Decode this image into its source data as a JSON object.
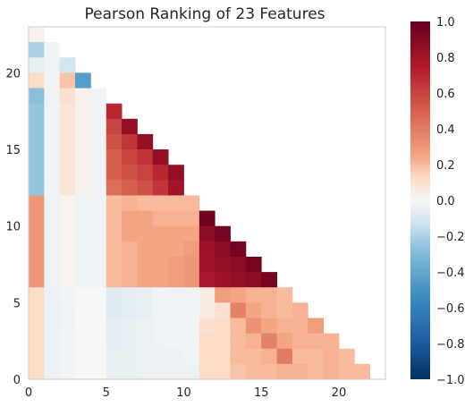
{
  "chart_data": {
    "type": "heatmap",
    "title": "Pearson Ranking of 23 Features",
    "xlabel": "",
    "ylabel": "",
    "xlim": [
      0,
      23
    ],
    "ylim": [
      0,
      23
    ],
    "x_ticks": [
      0,
      5,
      10,
      15,
      20
    ],
    "y_ticks": [
      0,
      5,
      10,
      15,
      20
    ],
    "colorbar": {
      "range": [
        -1.0,
        1.0
      ],
      "ticks": [
        1.0,
        0.8,
        0.6,
        0.4,
        0.2,
        0.0,
        -0.2,
        -0.4,
        -0.6,
        -0.8,
        -1.0
      ],
      "tick_labels": [
        "1.0",
        "0.8",
        "0.6",
        "0.4",
        "0.2",
        "0.0",
        "−0.2",
        "−0.4",
        "−0.6",
        "−0.8",
        "−1.0"
      ],
      "colormap": "RdBu_r"
    },
    "grid": false,
    "note_on_matrix": "rows listed top (y=22) to bottom (y=0); index = x column; null = not drawn",
    "matrix": [
      [
        0.03,
        null,
        null,
        null,
        null,
        null,
        null,
        null,
        null,
        null,
        null,
        null,
        null,
        null,
        null,
        null,
        null,
        null,
        null,
        null,
        null,
        null,
        null
      ],
      [
        -0.2,
        -0.02,
        null,
        null,
        null,
        null,
        null,
        null,
        null,
        null,
        null,
        null,
        null,
        null,
        null,
        null,
        null,
        null,
        null,
        null,
        null,
        null,
        null
      ],
      [
        -0.05,
        -0.03,
        -0.12,
        null,
        null,
        null,
        null,
        null,
        null,
        null,
        null,
        null,
        null,
        null,
        null,
        null,
        null,
        null,
        null,
        null,
        null,
        null,
        null
      ],
      [
        0.12,
        -0.02,
        0.18,
        -0.45,
        null,
        null,
        null,
        null,
        null,
        null,
        null,
        null,
        null,
        null,
        null,
        null,
        null,
        null,
        null,
        null,
        null,
        null,
        null
      ],
      [
        -0.28,
        -0.02,
        0.1,
        0.03,
        -0.02,
        null,
        null,
        null,
        null,
        null,
        null,
        null,
        null,
        null,
        null,
        null,
        null,
        null,
        null,
        null,
        null,
        null,
        null
      ],
      [
        -0.25,
        -0.02,
        0.08,
        0.03,
        -0.02,
        0.7,
        null,
        null,
        null,
        null,
        null,
        null,
        null,
        null,
        null,
        null,
        null,
        null,
        null,
        null,
        null,
        null,
        null
      ],
      [
        -0.25,
        -0.02,
        0.08,
        0.03,
        -0.02,
        0.6,
        0.85,
        null,
        null,
        null,
        null,
        null,
        null,
        null,
        null,
        null,
        null,
        null,
        null,
        null,
        null,
        null,
        null
      ],
      [
        -0.25,
        -0.02,
        0.08,
        0.03,
        -0.02,
        0.55,
        0.65,
        0.85,
        null,
        null,
        null,
        null,
        null,
        null,
        null,
        null,
        null,
        null,
        null,
        null,
        null,
        null,
        null
      ],
      [
        -0.25,
        -0.02,
        0.08,
        0.03,
        -0.02,
        0.5,
        0.6,
        0.65,
        0.85,
        null,
        null,
        null,
        null,
        null,
        null,
        null,
        null,
        null,
        null,
        null,
        null,
        null,
        null
      ],
      [
        -0.25,
        -0.02,
        0.08,
        0.03,
        -0.02,
        0.5,
        0.55,
        0.6,
        0.7,
        0.85,
        null,
        null,
        null,
        null,
        null,
        null,
        null,
        null,
        null,
        null,
        null,
        null,
        null
      ],
      [
        -0.25,
        -0.02,
        0.08,
        0.03,
        -0.02,
        0.45,
        0.5,
        0.55,
        0.65,
        0.8,
        null,
        null,
        null,
        null,
        null,
        null,
        null,
        null,
        null,
        null,
        null,
        null,
        null
      ],
      [
        0.3,
        -0.03,
        0.02,
        -0.03,
        -0.02,
        0.2,
        0.22,
        0.2,
        0.2,
        0.2,
        0.2,
        null,
        null,
        null,
        null,
        null,
        null,
        null,
        null,
        null,
        null,
        null,
        null
      ],
      [
        0.3,
        -0.03,
        0.02,
        -0.03,
        -0.02,
        0.2,
        0.25,
        0.25,
        0.22,
        0.22,
        0.22,
        0.97,
        null,
        null,
        null,
        null,
        null,
        null,
        null,
        null,
        null,
        null,
        null
      ],
      [
        0.3,
        -0.03,
        0.02,
        -0.03,
        -0.02,
        0.2,
        0.25,
        0.25,
        0.25,
        0.25,
        0.25,
        0.88,
        0.95,
        null,
        null,
        null,
        null,
        null,
        null,
        null,
        null,
        null,
        null
      ],
      [
        0.3,
        -0.03,
        0.02,
        -0.03,
        -0.02,
        0.2,
        0.22,
        0.25,
        0.25,
        0.25,
        0.28,
        0.82,
        0.88,
        0.95,
        null,
        null,
        null,
        null,
        null,
        null,
        null,
        null,
        null
      ],
      [
        0.3,
        -0.03,
        0.02,
        -0.03,
        -0.02,
        0.2,
        0.22,
        0.25,
        0.25,
        0.28,
        0.3,
        0.8,
        0.85,
        0.88,
        0.95,
        null,
        null,
        null,
        null,
        null,
        null,
        null,
        null
      ],
      [
        0.3,
        -0.03,
        0.02,
        -0.03,
        -0.02,
        0.2,
        0.22,
        0.25,
        0.25,
        0.28,
        0.3,
        0.78,
        0.82,
        0.85,
        0.88,
        0.95,
        null,
        null,
        null,
        null,
        null,
        null,
        null
      ],
      [
        0.12,
        -0.04,
        -0.02,
        0.0,
        0.0,
        -0.08,
        -0.06,
        -0.05,
        -0.02,
        -0.02,
        -0.02,
        0.05,
        0.28,
        0.25,
        0.22,
        0.22,
        0.2,
        null,
        null,
        null,
        null,
        null,
        null
      ],
      [
        0.12,
        -0.04,
        -0.03,
        0.0,
        0.0,
        -0.08,
        -0.06,
        -0.05,
        -0.03,
        -0.02,
        -0.02,
        0.05,
        0.1,
        0.38,
        0.25,
        0.22,
        0.2,
        0.22,
        null,
        null,
        null,
        null,
        null
      ],
      [
        0.12,
        -0.04,
        -0.03,
        0.0,
        0.0,
        -0.06,
        -0.05,
        -0.04,
        -0.03,
        -0.02,
        -0.02,
        0.1,
        0.12,
        0.2,
        0.32,
        0.25,
        0.22,
        0.22,
        0.28,
        null,
        null,
        null,
        null
      ],
      [
        0.12,
        -0.04,
        -0.02,
        0.0,
        0.0,
        -0.06,
        -0.05,
        -0.04,
        -0.03,
        -0.02,
        -0.02,
        0.12,
        0.12,
        0.2,
        0.22,
        0.38,
        0.25,
        0.22,
        0.22,
        0.22,
        null,
        null,
        null
      ],
      [
        0.12,
        -0.04,
        -0.02,
        0.0,
        0.0,
        -0.05,
        -0.05,
        -0.04,
        -0.04,
        -0.04,
        -0.03,
        0.12,
        0.12,
        0.2,
        0.2,
        0.22,
        0.4,
        0.2,
        0.2,
        0.22,
        0.2,
        null,
        null
      ],
      [
        0.12,
        -0.04,
        -0.02,
        0.0,
        0.0,
        -0.05,
        -0.05,
        -0.04,
        -0.04,
        -0.04,
        -0.04,
        0.12,
        0.12,
        0.18,
        0.2,
        0.2,
        0.22,
        0.22,
        0.2,
        0.22,
        0.2,
        0.2,
        null
      ]
    ]
  }
}
